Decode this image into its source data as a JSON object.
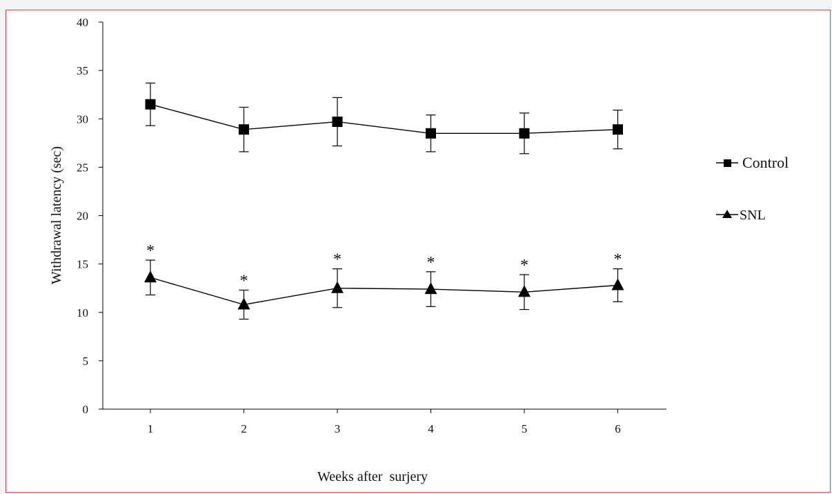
{
  "chart_data": {
    "type": "line",
    "title": "",
    "xlabel": "Weeks after  surjery",
    "ylabel": "Withdrawal  latency  (sec)",
    "categories": [
      "1",
      "2",
      "3",
      "4",
      "5",
      "6"
    ],
    "yticks": [
      "0",
      "5",
      "10",
      "15",
      "20",
      "25",
      "30",
      "35",
      "40"
    ],
    "ylim": [
      0,
      40
    ],
    "grid": false,
    "legend_position": "right",
    "series": [
      {
        "name": "Control",
        "marker": "square",
        "values": [
          31.5,
          28.9,
          29.7,
          28.5,
          28.5,
          28.9
        ],
        "error": [
          2.2,
          2.3,
          2.5,
          1.9,
          2.1,
          2.0
        ]
      },
      {
        "name": "SNL",
        "marker": "triangle",
        "values": [
          13.6,
          10.8,
          12.5,
          12.4,
          12.1,
          12.8
        ],
        "error": [
          1.8,
          1.5,
          2.0,
          1.8,
          1.8,
          1.7
        ],
        "significance": [
          "*",
          "*",
          "*",
          "*",
          "*",
          "*"
        ]
      }
    ],
    "colors": {
      "line": "#000000",
      "frame": "#e23a3a"
    }
  }
}
